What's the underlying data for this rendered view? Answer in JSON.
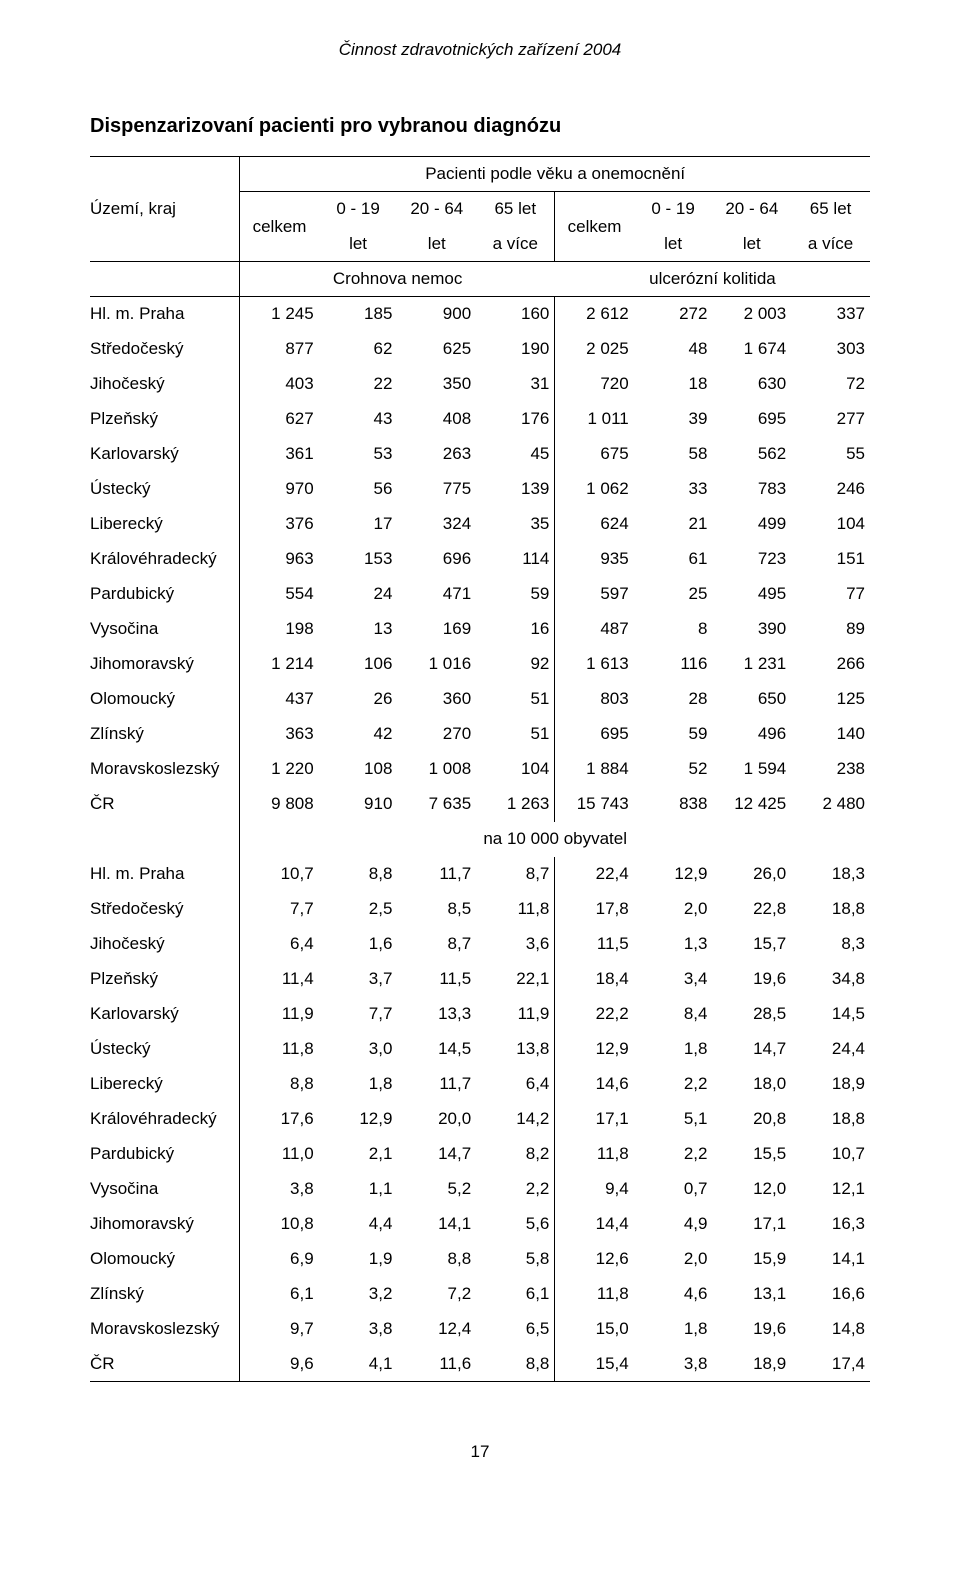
{
  "document_header": "Činnost zdravotnických zařízení 2004",
  "page_title": "Dispenzarizovaní pacienti pro vybranou diagnózu",
  "header": {
    "region_col": "Území, kraj",
    "span_title": "Pacienti podle věku a onemocnění",
    "celkem": "celkem",
    "c0_19_top": "0 - 19",
    "c0_19_bot": "let",
    "c20_64_top": "20 - 64",
    "c20_64_bot": "let",
    "c65_top": "65 let",
    "c65_bot": "a více",
    "group1": "Crohnova nemoc",
    "group2": "ulcerózní kolitida",
    "subtitle_mid": "na 10 000 obyvatel"
  },
  "section1": {
    "rows": [
      {
        "r": "Hl. m. Praha",
        "a": "1 245",
        "b": "185",
        "c": "900",
        "d": "160",
        "e": "2 612",
        "f": "272",
        "g": "2 003",
        "h": "337"
      },
      {
        "r": "Středočeský",
        "a": "877",
        "b": "62",
        "c": "625",
        "d": "190",
        "e": "2 025",
        "f": "48",
        "g": "1 674",
        "h": "303"
      },
      {
        "r": "Jihočeský",
        "a": "403",
        "b": "22",
        "c": "350",
        "d": "31",
        "e": "720",
        "f": "18",
        "g": "630",
        "h": "72"
      },
      {
        "r": "Plzeňský",
        "a": "627",
        "b": "43",
        "c": "408",
        "d": "176",
        "e": "1 011",
        "f": "39",
        "g": "695",
        "h": "277"
      },
      {
        "r": "Karlovarský",
        "a": "361",
        "b": "53",
        "c": "263",
        "d": "45",
        "e": "675",
        "f": "58",
        "g": "562",
        "h": "55"
      },
      {
        "r": "Ústecký",
        "a": "970",
        "b": "56",
        "c": "775",
        "d": "139",
        "e": "1 062",
        "f": "33",
        "g": "783",
        "h": "246"
      },
      {
        "r": "Liberecký",
        "a": "376",
        "b": "17",
        "c": "324",
        "d": "35",
        "e": "624",
        "f": "21",
        "g": "499",
        "h": "104"
      },
      {
        "r": "Královéhradecký",
        "a": "963",
        "b": "153",
        "c": "696",
        "d": "114",
        "e": "935",
        "f": "61",
        "g": "723",
        "h": "151"
      },
      {
        "r": "Pardubický",
        "a": "554",
        "b": "24",
        "c": "471",
        "d": "59",
        "e": "597",
        "f": "25",
        "g": "495",
        "h": "77"
      },
      {
        "r": "Vysočina",
        "a": "198",
        "b": "13",
        "c": "169",
        "d": "16",
        "e": "487",
        "f": "8",
        "g": "390",
        "h": "89"
      },
      {
        "r": "Jihomoravský",
        "a": "1 214",
        "b": "106",
        "c": "1 016",
        "d": "92",
        "e": "1 613",
        "f": "116",
        "g": "1 231",
        "h": "266"
      },
      {
        "r": "Olomoucký",
        "a": "437",
        "b": "26",
        "c": "360",
        "d": "51",
        "e": "803",
        "f": "28",
        "g": "650",
        "h": "125"
      },
      {
        "r": "Zlínský",
        "a": "363",
        "b": "42",
        "c": "270",
        "d": "51",
        "e": "695",
        "f": "59",
        "g": "496",
        "h": "140"
      },
      {
        "r": "Moravskoslezský",
        "a": "1 220",
        "b": "108",
        "c": "1 008",
        "d": "104",
        "e": "1 884",
        "f": "52",
        "g": "1 594",
        "h": "238"
      }
    ],
    "total": {
      "r": "ČR",
      "a": "9 808",
      "b": "910",
      "c": "7 635",
      "d": "1 263",
      "e": "15 743",
      "f": "838",
      "g": "12 425",
      "h": "2 480"
    }
  },
  "section2": {
    "rows": [
      {
        "r": "Hl. m. Praha",
        "a": "10,7",
        "b": "8,8",
        "c": "11,7",
        "d": "8,7",
        "e": "22,4",
        "f": "12,9",
        "g": "26,0",
        "h": "18,3"
      },
      {
        "r": "Středočeský",
        "a": "7,7",
        "b": "2,5",
        "c": "8,5",
        "d": "11,8",
        "e": "17,8",
        "f": "2,0",
        "g": "22,8",
        "h": "18,8"
      },
      {
        "r": "Jihočeský",
        "a": "6,4",
        "b": "1,6",
        "c": "8,7",
        "d": "3,6",
        "e": "11,5",
        "f": "1,3",
        "g": "15,7",
        "h": "8,3"
      },
      {
        "r": "Plzeňský",
        "a": "11,4",
        "b": "3,7",
        "c": "11,5",
        "d": "22,1",
        "e": "18,4",
        "f": "3,4",
        "g": "19,6",
        "h": "34,8"
      },
      {
        "r": "Karlovarský",
        "a": "11,9",
        "b": "7,7",
        "c": "13,3",
        "d": "11,9",
        "e": "22,2",
        "f": "8,4",
        "g": "28,5",
        "h": "14,5"
      },
      {
        "r": "Ústecký",
        "a": "11,8",
        "b": "3,0",
        "c": "14,5",
        "d": "13,8",
        "e": "12,9",
        "f": "1,8",
        "g": "14,7",
        "h": "24,4"
      },
      {
        "r": "Liberecký",
        "a": "8,8",
        "b": "1,8",
        "c": "11,7",
        "d": "6,4",
        "e": "14,6",
        "f": "2,2",
        "g": "18,0",
        "h": "18,9"
      },
      {
        "r": "Královéhradecký",
        "a": "17,6",
        "b": "12,9",
        "c": "20,0",
        "d": "14,2",
        "e": "17,1",
        "f": "5,1",
        "g": "20,8",
        "h": "18,8"
      },
      {
        "r": "Pardubický",
        "a": "11,0",
        "b": "2,1",
        "c": "14,7",
        "d": "8,2",
        "e": "11,8",
        "f": "2,2",
        "g": "15,5",
        "h": "10,7"
      },
      {
        "r": "Vysočina",
        "a": "3,8",
        "b": "1,1",
        "c": "5,2",
        "d": "2,2",
        "e": "9,4",
        "f": "0,7",
        "g": "12,0",
        "h": "12,1"
      },
      {
        "r": "Jihomoravský",
        "a": "10,8",
        "b": "4,4",
        "c": "14,1",
        "d": "5,6",
        "e": "14,4",
        "f": "4,9",
        "g": "17,1",
        "h": "16,3"
      },
      {
        "r": "Olomoucký",
        "a": "6,9",
        "b": "1,9",
        "c": "8,8",
        "d": "5,8",
        "e": "12,6",
        "f": "2,0",
        "g": "15,9",
        "h": "14,1"
      },
      {
        "r": "Zlínský",
        "a": "6,1",
        "b": "3,2",
        "c": "7,2",
        "d": "6,1",
        "e": "11,8",
        "f": "4,6",
        "g": "13,1",
        "h": "16,6"
      },
      {
        "r": "Moravskoslezský",
        "a": "9,7",
        "b": "3,8",
        "c": "12,4",
        "d": "6,5",
        "e": "15,0",
        "f": "1,8",
        "g": "19,6",
        "h": "14,8"
      }
    ],
    "total": {
      "r": "ČR",
      "a": "9,6",
      "b": "4,1",
      "c": "11,6",
      "d": "8,8",
      "e": "15,4",
      "f": "3,8",
      "g": "18,9",
      "h": "17,4"
    }
  },
  "footer": "17"
}
